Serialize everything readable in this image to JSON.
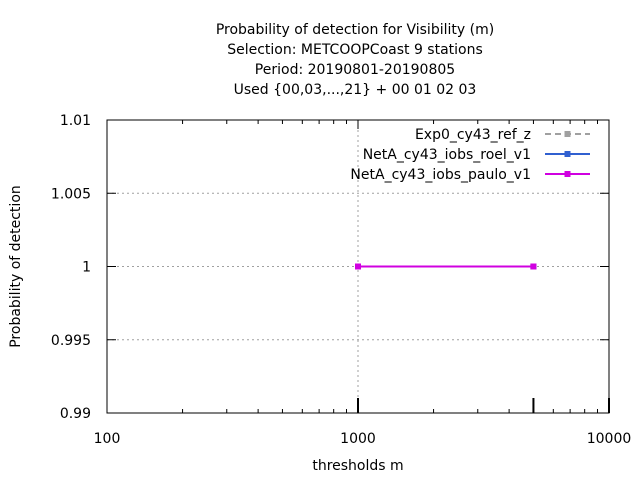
{
  "chart_data": {
    "type": "line",
    "title_lines": [
      "Probability of detection  for Visibility (m)",
      "Selection: METCOOPCoast      9 stations",
      "Period: 20190801-20190805",
      "Used {00,03,...,21} + 00 01 02 03"
    ],
    "xlabel": "thresholds m",
    "ylabel": "Probability of detection",
    "x_scale": "log",
    "xlim": [
      100,
      10000
    ],
    "ylim": [
      0.99,
      1.01
    ],
    "x_ticks": [
      100,
      1000,
      10000
    ],
    "x_tick_labels": [
      "100",
      "1000",
      "10000"
    ],
    "y_ticks": [
      0.99,
      0.995,
      1,
      1.005,
      1.01
    ],
    "y_tick_labels": [
      "0.99",
      "0.995",
      "1",
      "1.005",
      "1.01"
    ],
    "grid": true,
    "legend_position": "top-right",
    "series": [
      {
        "name": "Exp0_cy43_ref_z",
        "color": "#a0a0a0",
        "dash": true,
        "x": [
          1000,
          5000
        ],
        "y": [
          1,
          1
        ]
      },
      {
        "name": "NetA_cy43_iobs_roel_v1",
        "color": "#3060d0",
        "dash": false,
        "x": [
          1000,
          5000
        ],
        "y": [
          1,
          1
        ]
      },
      {
        "name": "NetA_cy43_iobs_paulo_v1",
        "color": "#d000e0",
        "dash": false,
        "x": [
          1000,
          5000
        ],
        "y": [
          1,
          1
        ]
      }
    ],
    "histogram_x": [
      1000,
      5000,
      10000
    ]
  }
}
